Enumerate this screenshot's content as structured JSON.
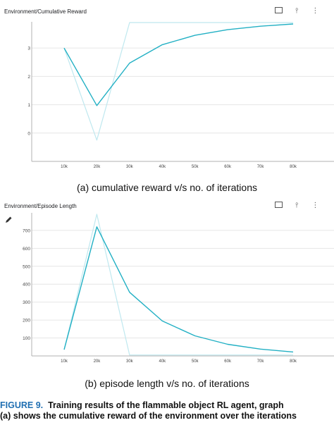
{
  "panels": [
    {
      "title": "Environment/Cumulative Reward",
      "toolbar": {
        "fullscreen_icon": "fullscreen-icon",
        "pin_icon": "pin-icon",
        "more_icon": "more-icon"
      },
      "caption": "(a) cumulative reward v/s no. of iterations"
    },
    {
      "title": "Environment/Episode Length",
      "toolbar": {
        "fullscreen_icon": "fullscreen-icon",
        "pin_icon": "pin-icon",
        "more_icon": "more-icon"
      },
      "caption": "(b) episode length v/s no. of iterations"
    }
  ],
  "figure_caption": {
    "label": "FIGURE 9.",
    "line1": "Training results of the flammable object RL agent, graph",
    "line2": "(a) shows the cumulative reward of the environment over the iterations"
  },
  "colors": {
    "smoothed": "#22b0c4",
    "raw": "#bfe8ef",
    "axis": "#b0b0b0",
    "grid": "#e6e6e6",
    "tick": "#444444"
  },
  "chart_data": [
    {
      "type": "line",
      "title": "Environment/Cumulative Reward",
      "categories": [
        "10k",
        "20k",
        "30k",
        "40k",
        "50k",
        "60k",
        "70k",
        "80k"
      ],
      "x": [
        10000,
        20000,
        30000,
        40000,
        50000,
        60000,
        70000,
        80000
      ],
      "xlim": [
        10000,
        80000
      ],
      "ylim": [
        -1.0,
        3.9
      ],
      "yticks": [
        0,
        1,
        2,
        3
      ],
      "grid": "horizontal",
      "series": [
        {
          "values": [
            3.0,
            -0.25,
            3.9,
            3.9,
            3.9,
            3.9,
            3.9,
            3.9
          ]
        },
        {
          "values": [
            3.0,
            0.97,
            2.47,
            3.12,
            3.45,
            3.65,
            3.77,
            3.85
          ]
        }
      ]
    },
    {
      "type": "line",
      "title": "Environment/Episode Length",
      "categories": [
        "10k",
        "20k",
        "30k",
        "40k",
        "50k",
        "60k",
        "70k",
        "80k"
      ],
      "x": [
        10000,
        20000,
        30000,
        40000,
        50000,
        60000,
        70000,
        80000
      ],
      "xlim": [
        10000,
        80000
      ],
      "ylim": [
        0,
        790
      ],
      "yticks": [
        100,
        200,
        300,
        400,
        500,
        600,
        700
      ],
      "grid": "horizontal",
      "series": [
        {
          "values": [
            35,
            790,
            5,
            5,
            5,
            5,
            5,
            5
          ]
        },
        {
          "values": [
            35,
            720,
            355,
            195,
            112,
            65,
            38,
            22
          ]
        }
      ]
    }
  ]
}
